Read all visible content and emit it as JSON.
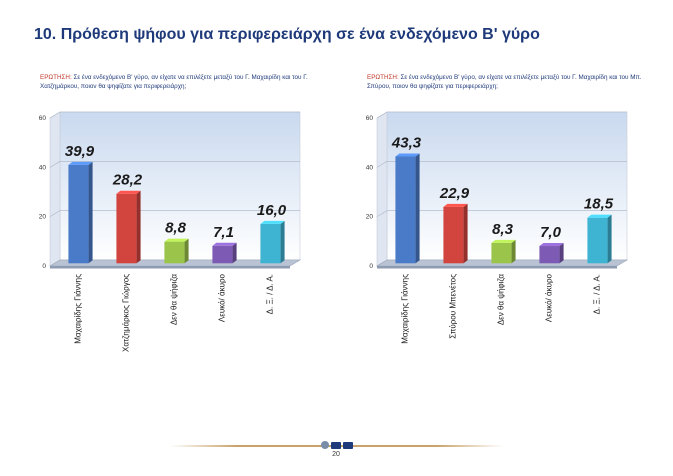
{
  "page": {
    "title": "10. Πρόθεση ψήφου για περιφερειάρχη σε ένα ενδεχόμενο Β' γύρο",
    "page_number": "20"
  },
  "questions": [
    {
      "label": "ΕΡΩΤΗΣΗ:",
      "text": "Σε ένα ενδεχόμενο Β' γύρο, αν είχατε να επιλέξετε μεταξύ του Γ. Μαχαιρίδη και του Γ. Χατζημάρκου, ποιον θα ψηφίζατε για περιφερειάρχη;"
    },
    {
      "label": "ΕΡΩΤΗΣΗ:",
      "text": "Σε ένα ενδεχόμενο Β' γύρο, αν είχατε να επιλέξετε μεταξύ του Γ. Μαχαιρίδη και του Μπ. Σπύρου, ποιον θα ψηφίζατε για περιφερειάρχη;"
    }
  ],
  "chart_data": [
    {
      "type": "bar",
      "title": "",
      "xlabel": "",
      "ylabel": "",
      "ylim": [
        0,
        60
      ],
      "yticks": [
        0,
        20,
        40,
        60
      ],
      "grid": true,
      "categories": [
        "Μαχαιρίδης Γιάννης",
        "Χατζημάρκος Γιώργος",
        "Δεν θα ψήφιζα",
        "Λευκό/ άκυρο",
        "Δ. Ξ. / Δ. Α."
      ],
      "values": [
        39.9,
        28.2,
        8.8,
        7.1,
        16.0
      ],
      "value_labels": [
        "39,9",
        "28,2",
        "8,8",
        "7,1",
        "16,0"
      ],
      "colors": [
        "#4a7bc8",
        "#d2453f",
        "#9bc44a",
        "#7d5ab3",
        "#3fb3d2"
      ]
    },
    {
      "type": "bar",
      "title": "",
      "xlabel": "",
      "ylabel": "",
      "ylim": [
        0,
        60
      ],
      "yticks": [
        0,
        20,
        40,
        60
      ],
      "grid": true,
      "categories": [
        "Μαχαιρίδης Γιάννης",
        "Σπύρου Μπενέτος",
        "Δεν θα ψήφιζα",
        "Λευκό/ άκυρο",
        "Δ. Ξ. / Δ. Α."
      ],
      "values": [
        43.3,
        22.9,
        8.3,
        7.0,
        18.5
      ],
      "value_labels": [
        "43,3",
        "22,9",
        "8,3",
        "7,0",
        "18,5"
      ],
      "colors": [
        "#4a7bc8",
        "#d2453f",
        "#9bc44a",
        "#7d5ab3",
        "#3fb3d2"
      ]
    }
  ]
}
